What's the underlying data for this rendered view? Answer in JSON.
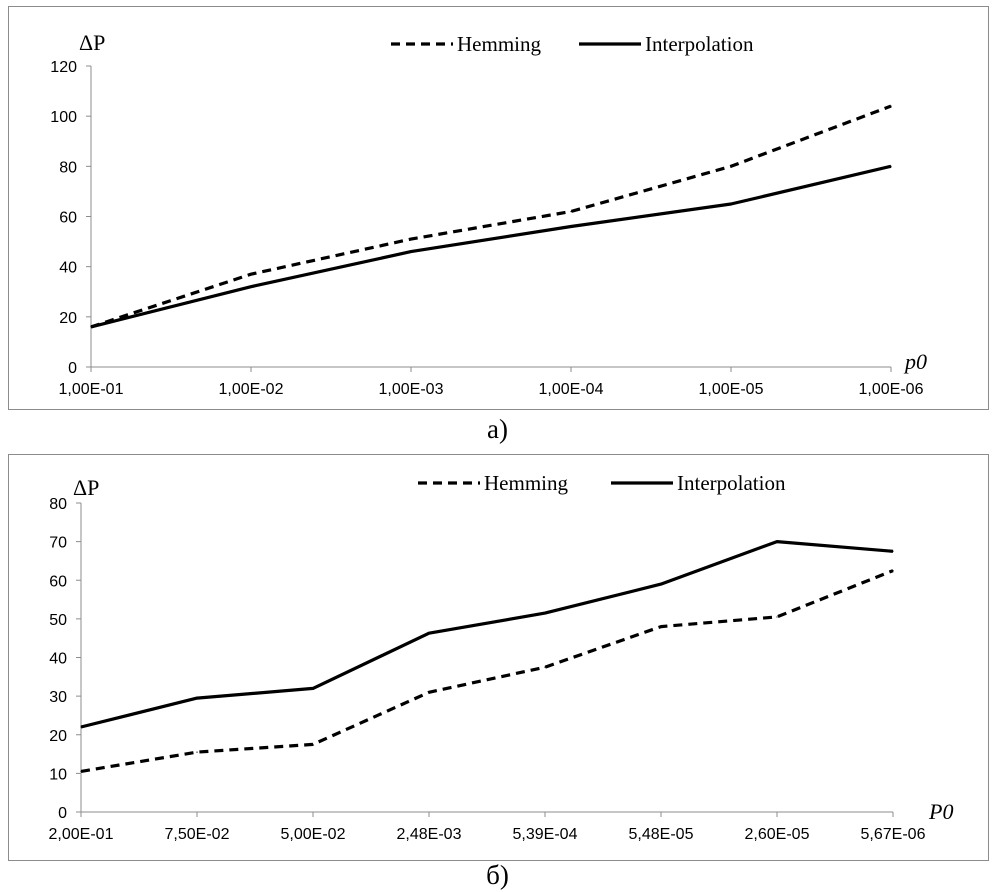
{
  "chart_data": [
    {
      "type": "line",
      "title": "",
      "ylabel": "ΔP",
      "xlabel": "p0",
      "ylim": [
        0,
        120
      ],
      "yticks": [
        0,
        20,
        40,
        60,
        80,
        100,
        120
      ],
      "categories": [
        "1,00E-01",
        "1,00E-02",
        "1,00E-03",
        "1,00E-04",
        "1,00E-05",
        "1,00E-06"
      ],
      "series": [
        {
          "name": "Hemming",
          "style": "dashed",
          "values": [
            16,
            37,
            51,
            62,
            80,
            104
          ]
        },
        {
          "name": "Interpolation",
          "style": "solid",
          "values": [
            16,
            32,
            46,
            56,
            65,
            80
          ]
        }
      ],
      "legend": "top",
      "grid": false,
      "caption": "а)"
    },
    {
      "type": "line",
      "title": "",
      "ylabel": "ΔP",
      "xlabel": "P0",
      "ylim": [
        0,
        80
      ],
      "yticks": [
        0,
        10,
        20,
        30,
        40,
        50,
        60,
        70,
        80
      ],
      "categories": [
        "2,00E-01",
        "7,50E-02",
        "5,00E-02",
        "2,48E-03",
        "5,39E-04",
        "5,48E-05",
        "2,60E-05",
        "5,67E-06"
      ],
      "series": [
        {
          "name": "Hemming",
          "style": "dashed",
          "values": [
            10.5,
            15.5,
            17.5,
            31,
            37.5,
            48,
            50.5,
            62.5
          ]
        },
        {
          "name": "Interpolation",
          "style": "solid",
          "values": [
            22,
            29.5,
            32,
            46.3,
            51.5,
            59,
            70,
            67.5
          ]
        }
      ],
      "legend": "top",
      "grid": false,
      "caption": "б)"
    }
  ]
}
